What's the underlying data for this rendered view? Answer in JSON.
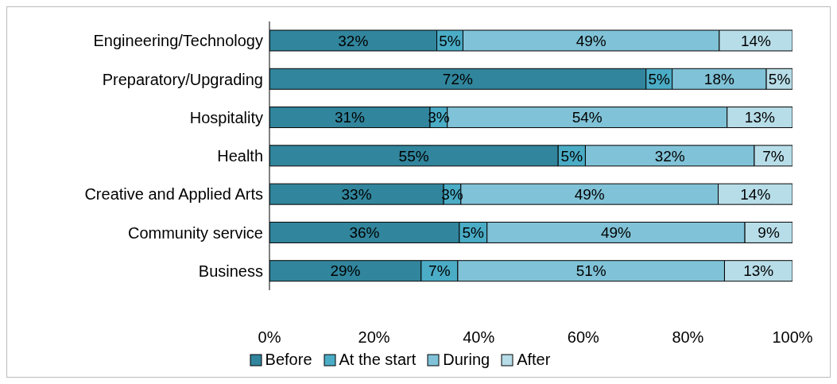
{
  "chart_data": {
    "type": "bar",
    "orientation": "horizontal",
    "stacked": true,
    "categories": [
      "Engineering/Technology",
      "Preparatory/Upgrading",
      "Hospitality",
      "Health",
      "Creative and Applied Arts",
      "Community service",
      "Business"
    ],
    "series": [
      {
        "name": "Before",
        "color": "#31859c",
        "values": [
          32,
          72,
          30.7,
          55.2,
          33.3,
          36.3,
          29
        ],
        "value_labels": [
          "32%",
          "72%",
          "31%",
          "55%",
          "33%",
          "36%",
          "29%"
        ]
      },
      {
        "name": "At the start",
        "color": "#4bacc6",
        "values": [
          5,
          5,
          3.3,
          5.2,
          3.3,
          5.3,
          7
        ],
        "value_labels": [
          "5%",
          "5%",
          "3%",
          "5%",
          "3%",
          "5%",
          "7%"
        ]
      },
      {
        "name": "During",
        "color": "#80c2d7",
        "values": [
          49,
          18,
          53.5,
          32.3,
          49.2,
          49.3,
          51
        ],
        "value_labels": [
          "49%",
          "18%",
          "54%",
          "32%",
          "49%",
          "49%",
          "51%"
        ]
      },
      {
        "name": "After",
        "color": "#b7dde8",
        "values": [
          14,
          5,
          12.5,
          7.3,
          14.2,
          9.1,
          13
        ],
        "value_labels": [
          "14%",
          "5%",
          "13%",
          "7%",
          "14%",
          "9%",
          "13%"
        ]
      }
    ],
    "xlim": [
      0,
      100
    ],
    "xticks": [
      {
        "value": 0,
        "label": "0%"
      },
      {
        "value": 20,
        "label": "20%"
      },
      {
        "value": 40,
        "label": "40%"
      },
      {
        "value": 60,
        "label": "60%"
      },
      {
        "value": 80,
        "label": "80%"
      },
      {
        "value": 100,
        "label": "100%"
      }
    ],
    "grid": false,
    "legend": "bottom"
  }
}
